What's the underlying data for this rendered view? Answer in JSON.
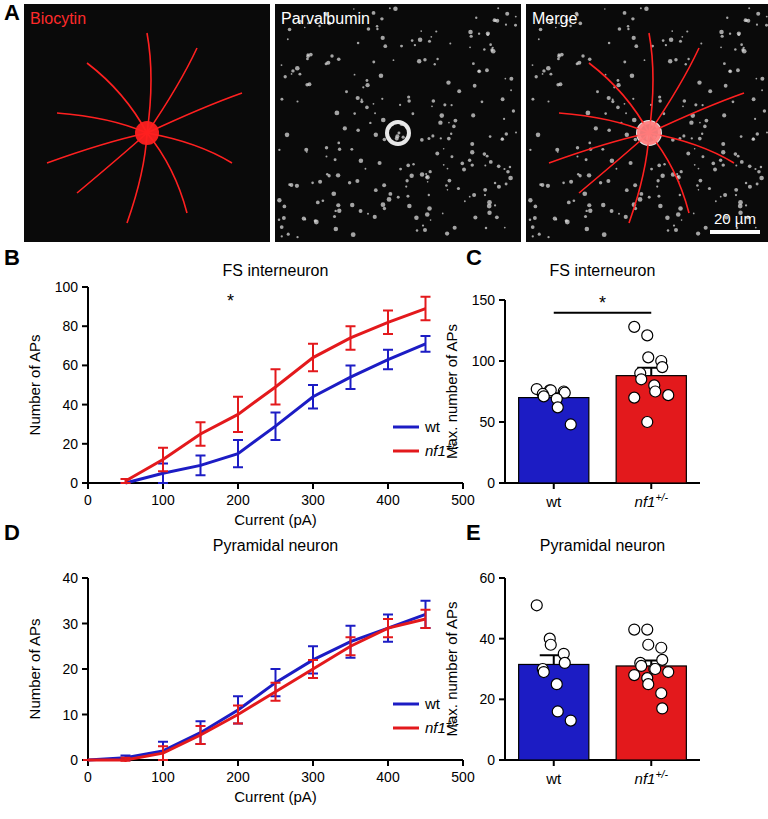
{
  "panel_a": {
    "panel_label": "A",
    "scale_bar": "20 µm",
    "images": [
      {
        "label": "Biocytin",
        "color": "#ff2a2a"
      },
      {
        "label": "Parvalbumin",
        "color": "#ffffff"
      },
      {
        "label": "Merge",
        "color": "#ffffff"
      }
    ]
  },
  "chart_data": [
    {
      "type": "line",
      "panel_label": "B",
      "title": "FS interneuron",
      "x_label": "Current (pA)",
      "y_label": "Number of APs",
      "annotations": [
        {
          "text": "*",
          "x": 190,
          "y": 94
        }
      ],
      "x": [
        50,
        100,
        150,
        200,
        250,
        300,
        350,
        400,
        450
      ],
      "series": [
        {
          "name": "wt",
          "color": "#1c1cc4",
          "values": [
            0,
            5,
            9,
            15,
            29,
            44,
            54,
            63,
            71
          ],
          "errors": [
            0,
            5,
            5,
            7,
            7,
            6,
            6,
            5,
            4
          ]
        },
        {
          "name": "nf1+/-",
          "color": "#e3191c",
          "values": [
            1,
            12,
            25,
            35,
            49,
            64,
            74,
            82,
            89
          ],
          "errors": [
            1,
            6,
            6,
            9,
            9,
            7,
            6,
            6,
            6
          ]
        }
      ],
      "xlim": [
        0,
        500
      ],
      "xticks": [
        0,
        100,
        200,
        300,
        400,
        500
      ],
      "ylim": [
        0,
        100
      ],
      "yticks": [
        0,
        20,
        40,
        60,
        80,
        100
      ],
      "legend": "lower right"
    },
    {
      "type": "bar",
      "panel_label": "C",
      "title": "FS interneuron",
      "y_label": "Max. number of APs",
      "annotations": [
        {
          "text": "*"
        }
      ],
      "categories": [
        "wt",
        "nf1+/-"
      ],
      "values": [
        70,
        88
      ],
      "errors": [
        3.5,
        6.5
      ],
      "colors": [
        "#1c1cc4",
        "#e3191c"
      ],
      "points": [
        [
          77,
          76,
          76,
          75,
          74,
          73,
          71,
          69,
          62,
          48
        ],
        [
          128,
          121,
          103,
          100,
          95,
          90,
          85,
          80,
          75,
          72,
          70,
          50
        ]
      ],
      "ylim": [
        0,
        150
      ],
      "yticks": [
        0,
        50,
        100,
        150
      ]
    },
    {
      "type": "line",
      "panel_label": "D",
      "title": "Pyramidal neuron",
      "x_label": "Current (pA)",
      "y_label": "Number of APs",
      "x": [
        0,
        50,
        100,
        150,
        200,
        250,
        300,
        350,
        400,
        450
      ],
      "series": [
        {
          "name": "wt",
          "color": "#1c1cc4",
          "values": [
            0,
            0.5,
            2,
            6,
            11,
            17,
            22,
            26,
            29,
            32
          ],
          "errors": [
            0,
            0.5,
            2,
            2.5,
            3,
            3,
            3,
            3.5,
            3,
            3
          ]
        },
        {
          "name": "nf1+/-",
          "color": "#e3191c",
          "values": [
            0,
            0,
            1.5,
            5.5,
            10,
            15,
            20,
            25,
            29,
            31
          ],
          "errors": [
            0,
            0.5,
            1.5,
            2,
            2,
            2,
            2,
            2,
            2,
            2
          ]
        }
      ],
      "xlim": [
        0,
        500
      ],
      "xticks": [
        0,
        100,
        200,
        300,
        400,
        500
      ],
      "ylim": [
        0,
        40
      ],
      "yticks": [
        0,
        10,
        20,
        30,
        40
      ],
      "legend": "lower right"
    },
    {
      "type": "bar",
      "panel_label": "E",
      "title": "Pyramidal neuron",
      "y_label": "Max. number of APs",
      "categories": [
        "wt",
        "nf1+/-"
      ],
      "values": [
        31.5,
        31
      ],
      "errors": [
        3,
        1.8
      ],
      "colors": [
        "#1c1cc4",
        "#e3191c"
      ],
      "points": [
        [
          51,
          40,
          38,
          35,
          32,
          30,
          29,
          25,
          16,
          13
        ],
        [
          43,
          43,
          38,
          37,
          33,
          32,
          31,
          30,
          30,
          29,
          28,
          27,
          25,
          22,
          17
        ]
      ],
      "ylim": [
        0,
        60
      ],
      "yticks": [
        0,
        20,
        40,
        60
      ]
    }
  ]
}
